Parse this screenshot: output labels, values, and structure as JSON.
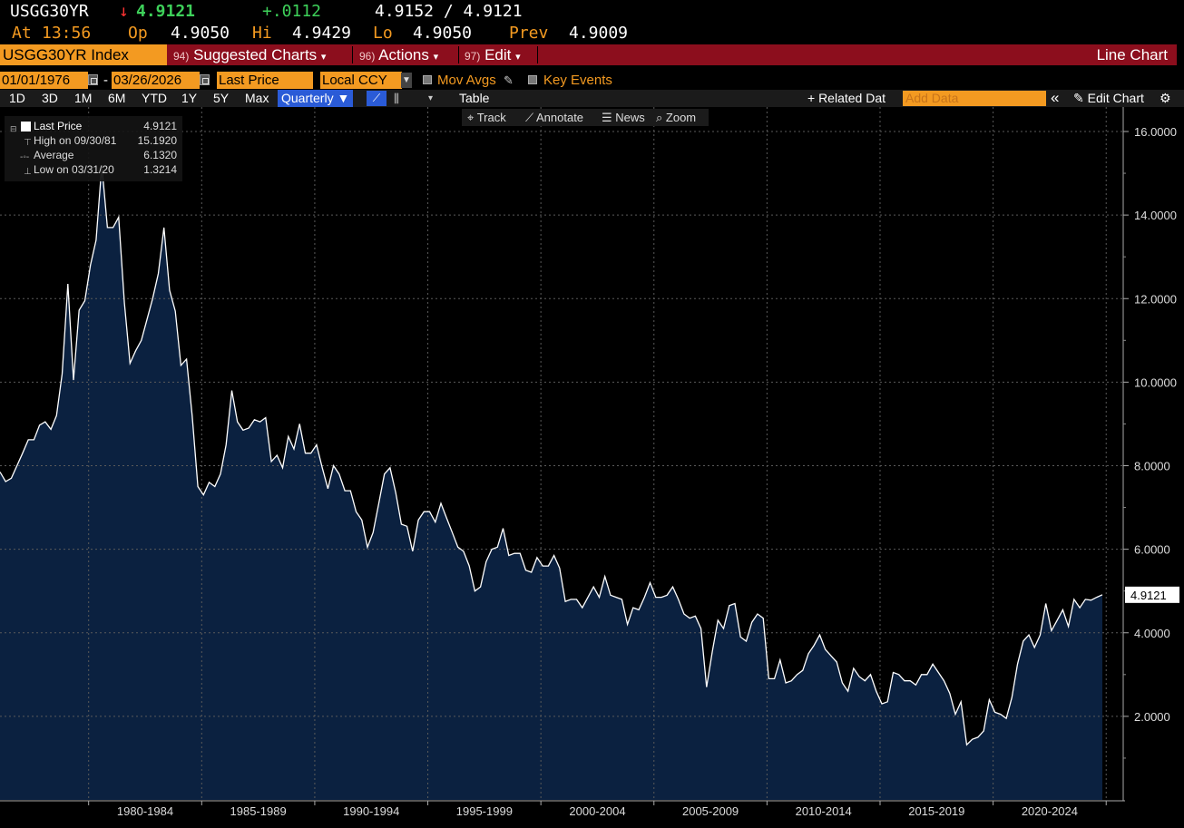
{
  "quote": {
    "ticker": "USGG30YR",
    "arrow": "↓",
    "last": "4.9121",
    "change": "+.0112",
    "bid_ask": "4.9152 / 4.9121",
    "at_label": "At",
    "time": "13:56",
    "open_label": "Op",
    "open": "4.9050",
    "high_label": "Hi",
    "high": "4.9429",
    "low_label": "Lo",
    "low": "4.9050",
    "prev_label": "Prev",
    "prev": "4.9009"
  },
  "titlebar": {
    "security": "USGG30YR Index",
    "suggested_num": "94)",
    "suggested_label": "Suggested Charts",
    "actions_num": "96)",
    "actions_label": "Actions",
    "edit_num": "97)",
    "edit_label": "Edit",
    "chart_type": "Line Chart",
    "caret": "▾"
  },
  "controls": {
    "start_date": "01/01/1976",
    "dash": "-",
    "end_date": "03/26/2026",
    "field": "Last Price",
    "currency": "Local CCY",
    "mov_avgs": "Mov Avgs",
    "key_events": "Key Events",
    "ranges": [
      "1D",
      "3D",
      "1M",
      "6M",
      "YTD",
      "1Y",
      "5Y",
      "Max"
    ],
    "period": "Quarterly ▼",
    "table": "Table",
    "related_data": "+ Related Dat",
    "add_data_placeholder": "Add Data",
    "collapse": "«",
    "edit_chart": "✎ Edit Chart",
    "settings": "⚙",
    "track": "⌖ Track",
    "annotate": "⟋ Annotate",
    "news": "☰ News",
    "zoom": "⌕ Zoom"
  },
  "legend": {
    "last_label": "Last Price",
    "last_value": "4.9121",
    "high_label": "High on 09/30/81",
    "high_value": "15.1920",
    "avg_label": "Average",
    "avg_value": "6.1320",
    "low_label": "Low on 03/31/20",
    "low_value": "1.3214"
  },
  "colors": {
    "background": "#000000",
    "area_fill": "#0b2140",
    "line": "#ffffff",
    "grid": "#5a5a5a",
    "accent_orange": "#f39a21",
    "title_bar": "#8c0e1d"
  },
  "chart_data": {
    "type": "area",
    "series": [
      {
        "name": "Last Price",
        "frequency": "quarterly",
        "values": [
          7.85,
          7.62,
          7.7,
          8.0,
          8.3,
          8.62,
          8.62,
          8.97,
          9.05,
          8.87,
          9.2,
          10.2,
          12.35,
          10.05,
          11.72,
          11.95,
          12.8,
          13.4,
          15.19,
          13.7,
          13.7,
          13.95,
          11.9,
          10.45,
          10.75,
          11.0,
          11.5,
          12.0,
          12.6,
          13.7,
          12.2,
          11.7,
          10.4,
          10.55,
          9.2,
          7.5,
          7.3,
          7.6,
          7.5,
          7.8,
          8.5,
          9.8,
          9.05,
          8.85,
          8.9,
          9.1,
          9.05,
          9.15,
          8.1,
          8.25,
          7.95,
          8.7,
          8.4,
          9.0,
          8.3,
          8.3,
          8.5,
          7.95,
          7.45,
          8.0,
          7.8,
          7.4,
          7.4,
          6.9,
          6.7,
          6.05,
          6.4,
          7.1,
          7.8,
          7.95,
          7.35,
          6.6,
          6.55,
          5.95,
          6.7,
          6.9,
          6.9,
          6.65,
          7.1,
          6.75,
          6.4,
          6.05,
          5.95,
          5.6,
          5.0,
          5.1,
          5.7,
          6.0,
          6.05,
          6.5,
          5.85,
          5.9,
          5.9,
          5.5,
          5.45,
          5.8,
          5.6,
          5.6,
          5.85,
          5.55,
          4.75,
          4.8,
          4.8,
          4.6,
          4.85,
          5.1,
          4.85,
          5.35,
          4.9,
          4.85,
          4.8,
          4.2,
          4.6,
          4.55,
          4.85,
          5.2,
          4.85,
          4.85,
          4.9,
          5.1,
          4.8,
          4.45,
          4.35,
          4.4,
          4.1,
          2.7,
          3.55,
          4.3,
          4.1,
          4.65,
          4.7,
          3.9,
          3.8,
          4.25,
          4.45,
          4.35,
          2.9,
          2.9,
          3.35,
          2.8,
          2.85,
          3.0,
          3.1,
          3.5,
          3.7,
          3.95,
          3.6,
          3.45,
          3.3,
          2.8,
          2.6,
          3.15,
          2.95,
          2.85,
          3.0,
          2.6,
          2.3,
          2.35,
          3.05,
          3.0,
          2.85,
          2.85,
          2.75,
          3.0,
          3.0,
          3.25,
          3.05,
          2.85,
          2.55,
          2.05,
          2.35,
          1.32,
          1.45,
          1.5,
          1.65,
          2.4,
          2.1,
          2.05,
          1.95,
          2.45,
          3.25,
          3.8,
          3.95,
          3.65,
          3.95,
          4.7,
          4.05,
          4.3,
          4.55,
          4.15,
          4.8,
          4.6,
          4.8,
          4.78,
          4.85,
          4.91
        ]
      }
    ],
    "x_start": "1976-Q1",
    "x_end": "2026-Q1",
    "x_tick_labels": [
      "1980-1984",
      "1985-1989",
      "1990-1994",
      "1995-1999",
      "2000-2004",
      "2005-2009",
      "2010-2014",
      "2015-2019",
      "2020-2024"
    ],
    "y_ticks": [
      "2.0000",
      "4.0000",
      "6.0000",
      "8.0000",
      "10.0000",
      "12.0000",
      "14.0000",
      "16.0000"
    ],
    "ylim": [
      0,
      16.5
    ],
    "last_value_label": "4.9121",
    "grid": true,
    "legend": "top-left"
  }
}
